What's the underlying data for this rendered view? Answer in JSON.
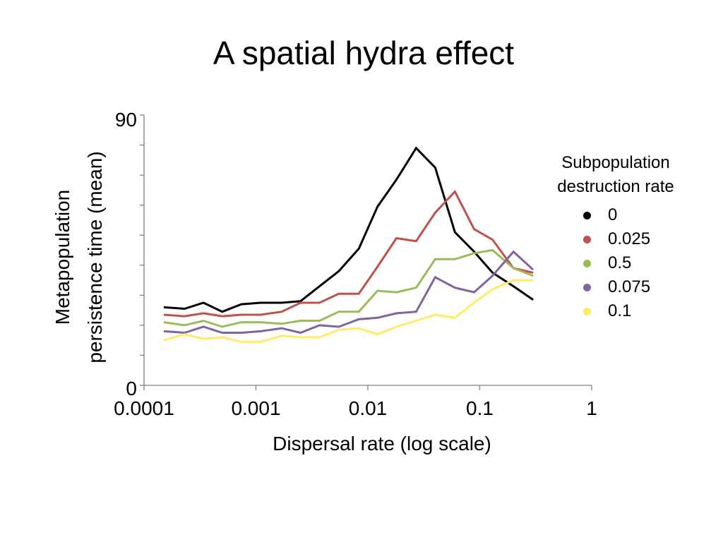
{
  "slide": {
    "title": "A spatial hydra effect"
  },
  "chart_data": {
    "type": "line",
    "title": "A spatial hydra effect",
    "xlabel": "Dispersal rate (log scale)",
    "ylabel": [
      "Metapopulation",
      "persistence time (mean)"
    ],
    "x_scale": "log",
    "xlim": [
      0.0001,
      1
    ],
    "ylim": [
      0,
      90
    ],
    "x_tick_labels": [
      "0.0001",
      "0.001",
      "0.01",
      "0.1",
      "1"
    ],
    "y_tick_labels": [
      "0",
      "90"
    ],
    "grid": false,
    "legend_title": "Subpopulation destruction rate",
    "legend_title_lines": [
      "Subpopulation",
      "destruction rate"
    ],
    "legend_position": "right",
    "x": [
      0.00015,
      0.00023,
      0.00034,
      0.0005,
      0.00074,
      0.0011,
      0.0017,
      0.0025,
      0.0037,
      0.0055,
      0.0083,
      0.0122,
      0.018,
      0.027,
      0.04,
      0.06,
      0.089,
      0.13,
      0.2,
      0.3
    ],
    "series": [
      {
        "name": "0",
        "color": "#000000",
        "values": [
          26,
          25.5,
          27.5,
          24.5,
          27,
          27.5,
          27.5,
          28,
          33,
          38,
          45.5,
          59.5,
          68.5,
          79,
          72.5,
          51,
          44.5,
          37.5,
          33,
          28.5
        ]
      },
      {
        "name": "0.025",
        "color": "#c0504d",
        "values": [
          23.5,
          23,
          24,
          23,
          23.5,
          23.5,
          24.5,
          27.5,
          27.5,
          30.5,
          30.5,
          39.5,
          49,
          48,
          57.5,
          64.5,
          52,
          48.5,
          39,
          37.5
        ]
      },
      {
        "name": "0.5",
        "color": "#9bbb59",
        "values": [
          21,
          20,
          21.5,
          19.5,
          21,
          21,
          20.5,
          21.5,
          21.5,
          24.5,
          24.5,
          31.5,
          31,
          32.5,
          42,
          42,
          44,
          45,
          39,
          36.5
        ]
      },
      {
        "name": "0.075",
        "color": "#8064a2",
        "values": [
          18,
          17.5,
          19.5,
          17.5,
          17.5,
          18,
          19,
          17.5,
          20,
          19.5,
          22,
          22.5,
          24,
          24.5,
          36,
          32.5,
          31,
          36.5,
          44.5,
          38.5
        ]
      },
      {
        "name": "0.1",
        "color": "#ffeb66",
        "values": [
          15,
          17,
          15.5,
          16,
          14.5,
          14.5,
          16.5,
          16,
          16,
          18.5,
          19,
          17,
          19.5,
          21.5,
          23.5,
          22.5,
          27.5,
          32,
          35,
          35
        ]
      }
    ]
  }
}
